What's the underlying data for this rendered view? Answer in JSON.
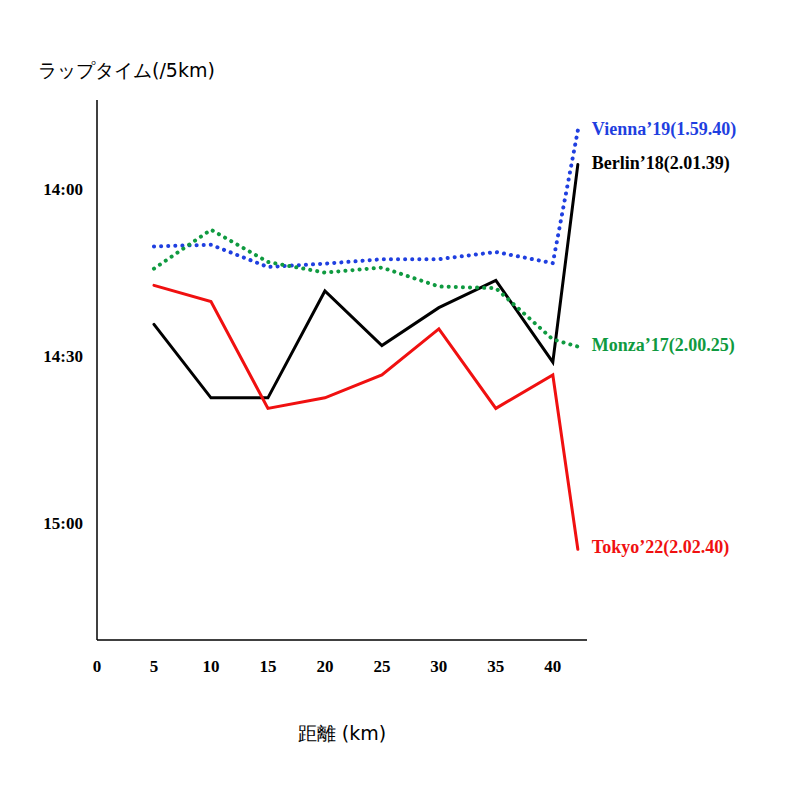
{
  "chart_data": {
    "type": "line",
    "y_label": "ラップタイム(/5km)",
    "x_label": "距離 (km)",
    "x": [
      5,
      10,
      15,
      20,
      25,
      30,
      35,
      40,
      42.195
    ],
    "xlim": [
      0,
      43
    ],
    "xticks": [
      0,
      5,
      10,
      15,
      20,
      25,
      30,
      35,
      40
    ],
    "ylim": [
      824,
      921
    ],
    "yticks": [
      {
        "value": 840,
        "label": "14:00"
      },
      {
        "value": 870,
        "label": "14:30"
      },
      {
        "value": 900,
        "label": "15:00"
      }
    ],
    "grid": false,
    "series": [
      {
        "name": "Vienna’19(1.59.40)",
        "color": "#1f3fe0",
        "line_style": "dotted",
        "values": [
          850.3,
          850,
          854,
          853.4,
          852.6,
          852.6,
          851.3,
          853.3,
          829.5
        ]
      },
      {
        "name": "Berlin’18(2.01.39)",
        "color": "#000000",
        "line_style": "solid",
        "values": [
          864.3,
          877.5,
          877.5,
          858.3,
          868.1,
          861.3,
          856.4,
          871.1,
          835.6
        ]
      },
      {
        "name": "Monza’17(2.00.25)",
        "color": "#0f9a40",
        "line_style": "dotted",
        "values": [
          854.3,
          847.3,
          853.1,
          855,
          854.1,
          857.5,
          857.8,
          867,
          868.3
        ]
      },
      {
        "name": "Tokyo’22(2.02.40)",
        "color": "#f01010",
        "line_style": "solid",
        "values": [
          857.3,
          860.2,
          879.4,
          877.5,
          873.4,
          865.1,
          879.4,
          873.4,
          904.7
        ]
      }
    ]
  }
}
